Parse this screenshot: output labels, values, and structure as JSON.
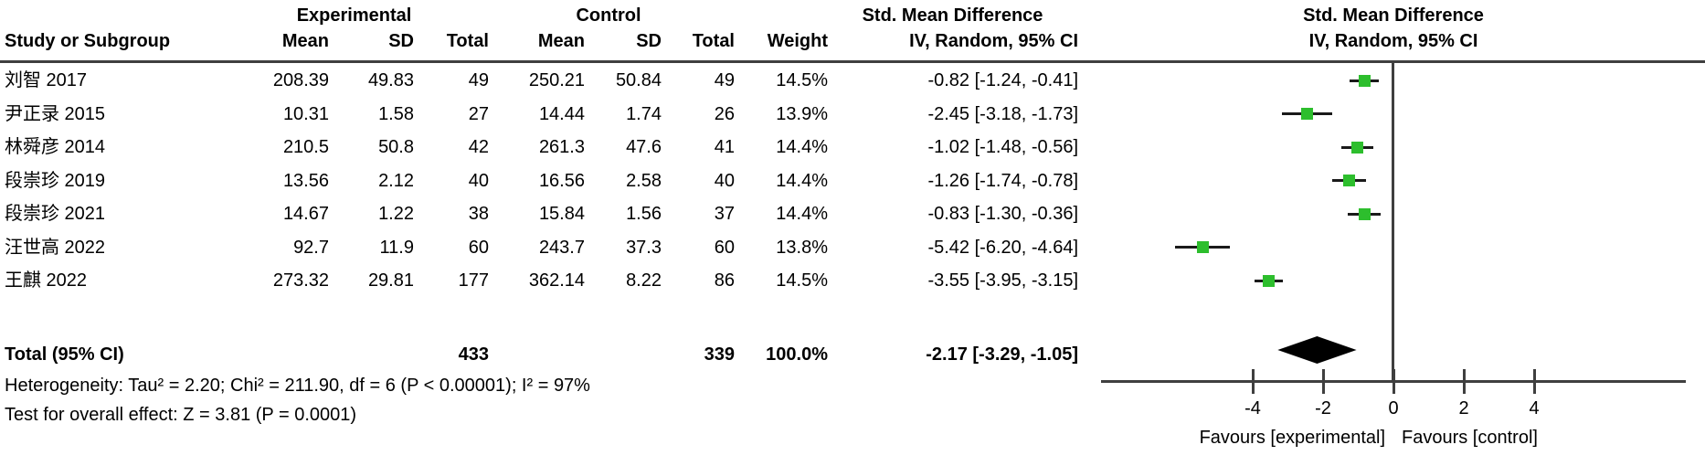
{
  "table": {
    "group_headers": {
      "experimental": "Experimental",
      "control": "Control",
      "smd": "Std. Mean Difference"
    },
    "column_headers": {
      "study": "Study or Subgroup",
      "mean_e": "Mean",
      "sd_e": "SD",
      "total_e": "Total",
      "mean_c": "Mean",
      "sd_c": "SD",
      "total_c": "Total",
      "weight": "Weight",
      "ci": "IV, Random, 95% CI"
    },
    "studies": [
      {
        "name": "刘智 2017",
        "mean_e": "208.39",
        "sd_e": "49.83",
        "total_e": "49",
        "mean_c": "250.21",
        "sd_c": "50.84",
        "total_c": "49",
        "weight": "14.5%",
        "ci_text": "-0.82 [-1.24, -0.41]"
      },
      {
        "name": "尹正录 2015",
        "mean_e": "10.31",
        "sd_e": "1.58",
        "total_e": "27",
        "mean_c": "14.44",
        "sd_c": "1.74",
        "total_c": "26",
        "weight": "13.9%",
        "ci_text": "-2.45 [-3.18, -1.73]"
      },
      {
        "name": "林舜彦 2014",
        "mean_e": "210.5",
        "sd_e": "50.8",
        "total_e": "42",
        "mean_c": "261.3",
        "sd_c": "47.6",
        "total_c": "41",
        "weight": "14.4%",
        "ci_text": "-1.02 [-1.48, -0.56]"
      },
      {
        "name": "段崇珍 2019",
        "mean_e": "13.56",
        "sd_e": "2.12",
        "total_e": "40",
        "mean_c": "16.56",
        "sd_c": "2.58",
        "total_c": "40",
        "weight": "14.4%",
        "ci_text": "-1.26 [-1.74, -0.78]"
      },
      {
        "name": "段崇珍 2021",
        "mean_e": "14.67",
        "sd_e": "1.22",
        "total_e": "38",
        "mean_c": "15.84",
        "sd_c": "1.56",
        "total_c": "37",
        "weight": "14.4%",
        "ci_text": "-0.83 [-1.30, -0.36]"
      },
      {
        "name": "汪世高 2022",
        "mean_e": "92.7",
        "sd_e": "11.9",
        "total_e": "60",
        "mean_c": "243.7",
        "sd_c": "37.3",
        "total_c": "60",
        "weight": "13.8%",
        "ci_text": "-5.42 [-6.20, -4.64]"
      },
      {
        "name": "王麒 2022",
        "mean_e": "273.32",
        "sd_e": "29.81",
        "total_e": "177",
        "mean_c": "362.14",
        "sd_c": "8.22",
        "total_c": "86",
        "weight": "14.5%",
        "ci_text": "-3.55 [-3.95, -3.15]"
      }
    ],
    "total_row": {
      "label": "Total (95% CI)",
      "total_e": "433",
      "total_c": "339",
      "weight": "100.0%",
      "ci_text": "-2.17 [-3.29, -1.05]"
    },
    "heterogeneity": "Heterogeneity: Tau² = 2.20; Chi² = 211.90, df = 6 (P < 0.00001); I² = 97%",
    "overall_effect": "Test for overall effect: Z = 3.81 (P = 0.0001)"
  },
  "plot": {
    "header_line1": "Std. Mean Difference",
    "header_line2": "IV, Random, 95% CI",
    "favours_left": "Favours [experimental]",
    "favours_right": "Favours [control]",
    "marker_color": "#2dbe2d",
    "line_color": "#3f3f3f"
  },
  "chart_data": {
    "type": "forest",
    "effect_measure": "Std. Mean Difference",
    "method": "IV, Random, 95% CI",
    "studies": [
      {
        "name": "刘智 2017",
        "est": -0.82,
        "lo": -1.24,
        "hi": -0.41,
        "weight_pct": 14.5
      },
      {
        "name": "尹正录 2015",
        "est": -2.45,
        "lo": -3.18,
        "hi": -1.73,
        "weight_pct": 13.9
      },
      {
        "name": "林舜彦 2014",
        "est": -1.02,
        "lo": -1.48,
        "hi": -0.56,
        "weight_pct": 14.4
      },
      {
        "name": "段崇珍 2019",
        "est": -1.26,
        "lo": -1.74,
        "hi": -0.78,
        "weight_pct": 14.4
      },
      {
        "name": "段崇珍 2021",
        "est": -0.83,
        "lo": -1.3,
        "hi": -0.36,
        "weight_pct": 14.4
      },
      {
        "name": "汪世高 2022",
        "est": -5.42,
        "lo": -6.2,
        "hi": -4.64,
        "weight_pct": 13.8
      },
      {
        "name": "王麒 2022",
        "est": -3.55,
        "lo": -3.95,
        "hi": -3.15,
        "weight_pct": 14.5
      }
    ],
    "total": {
      "est": -2.17,
      "lo": -3.29,
      "hi": -1.05
    },
    "axis_ticks": [
      -4,
      -2,
      0,
      2,
      4
    ],
    "xlim": [
      -8.3,
      8.3
    ],
    "xlabel_left": "Favours [experimental]",
    "xlabel_right": "Favours [control]"
  }
}
